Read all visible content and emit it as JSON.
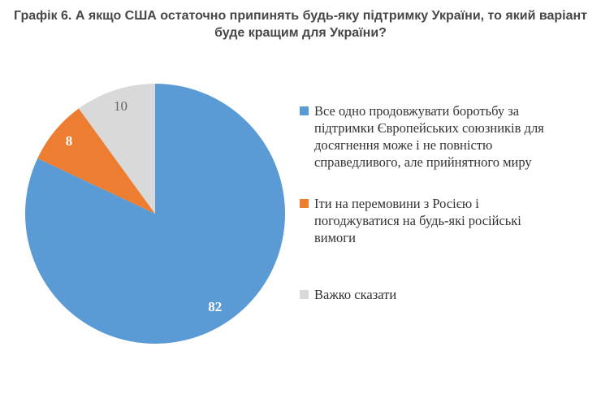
{
  "title": {
    "lines": [
      "Графік 6. А якщо США остаточно припинять будь-яку підтримку України, то який варіант",
      "буде кращим для України?"
    ]
  },
  "chart_data": {
    "type": "pie",
    "title": "Графік 6. А якщо США остаточно припинять будь-яку підтримку України, то який варіант буде кращим для України?",
    "unit": "percent",
    "start_angle_deg": 0,
    "direction": "clockwise",
    "legend_position": "right",
    "slices": [
      {
        "label": "Все одно продовжувати боротьбу за підтримки Європейських союзників для досягнення може і не повністю справедливого, але прийнятного миру",
        "value": 82,
        "color": "#5B9BD5",
        "label_color": "#FFFFFF",
        "label_weight": "bold"
      },
      {
        "label": "Іти на перемовини з Росією і погоджуватися на будь-які російські вимоги",
        "value": 8,
        "color": "#ED7D31",
        "label_color": "#FFFFFF",
        "label_weight": "bold"
      },
      {
        "label": "Важко сказати",
        "value": 10,
        "color": "#D9D9D9",
        "label_color": "#666666",
        "label_weight": "normal"
      }
    ]
  },
  "legend": {
    "items": [
      {
        "lines": [
          "Все одно продовжувати боротьбу за",
          "підтримки Європейських союзників для",
          "досягнення може і не повністю",
          "справедливого, але прийнятного миру"
        ]
      },
      {
        "lines": [
          "Іти на перемовини з Росією і",
          "погоджуватися на будь-які російські",
          "вимоги"
        ]
      },
      {
        "lines": [
          "Важко сказати"
        ]
      }
    ]
  }
}
